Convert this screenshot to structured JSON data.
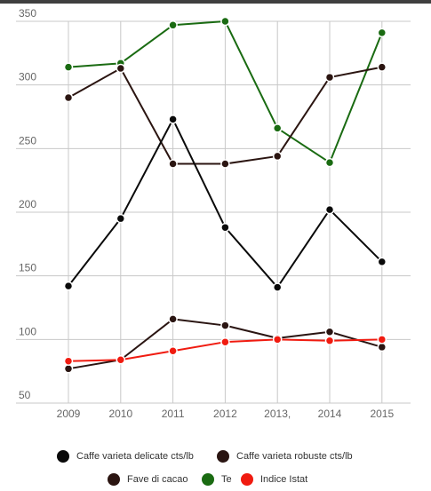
{
  "chart_data": {
    "type": "line",
    "title": "",
    "xlabel": "",
    "ylabel": "",
    "categories": [
      "2009",
      "2010",
      "2011",
      "2012",
      "2013,",
      "2014",
      "2015"
    ],
    "ylim": [
      50,
      350
    ],
    "yticks": [
      50,
      100,
      150,
      200,
      250,
      300,
      350
    ],
    "grid": true,
    "legend_position": "bottom",
    "series": [
      {
        "name": "Te",
        "color": "#1a6b12",
        "values": [
          314,
          317,
          347,
          350,
          266,
          239,
          341
        ]
      },
      {
        "name": "Fave di cacao",
        "color": "#2b1511",
        "values": [
          290,
          313,
          238,
          238,
          244,
          306,
          314
        ]
      },
      {
        "name": "Caffe varieta delicate cts/lb",
        "color": "#0a0a0a",
        "values": [
          142,
          195,
          273,
          188,
          141,
          202,
          161
        ]
      },
      {
        "name": "Caffe varieta robuste cts/lb",
        "color": "#2a1512",
        "values": [
          77,
          84,
          116,
          111,
          101,
          106,
          94
        ]
      },
      {
        "name": "Indice Istat",
        "color": "#f01b10",
        "values": [
          83,
          84,
          91,
          98,
          100,
          99,
          100
        ]
      }
    ],
    "legend_order": [
      "Caffe varieta delicate cts/lb",
      "Caffe varieta robuste cts/lb",
      "Fave di cacao",
      "Te",
      "Indice Istat"
    ]
  }
}
